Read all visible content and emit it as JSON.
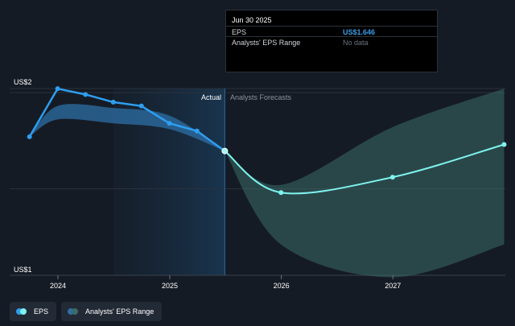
{
  "chart_data": {
    "type": "line",
    "y_axis_labels": {
      "top": "US$2",
      "bottom": "US$1"
    },
    "ylim": [
      1.0,
      2.0
    ],
    "x_ticks": [
      "2024",
      "2025",
      "2026",
      "2027"
    ],
    "section_labels": {
      "actual": "Actual",
      "forecast": "Analysts Forecasts"
    },
    "actual_divider_date": "2025-06-30",
    "series": [
      {
        "name": "EPS",
        "color": "#2e9ef0",
        "points": [
          {
            "x": "2023-09-30",
            "y": 1.72
          },
          {
            "x": "2023-12-31",
            "y": 1.97
          },
          {
            "x": "2024-03-31",
            "y": 1.94
          },
          {
            "x": "2024-06-30",
            "y": 1.9
          },
          {
            "x": "2024-09-30",
            "y": 1.88
          },
          {
            "x": "2024-12-31",
            "y": 1.79
          },
          {
            "x": "2025-03-31",
            "y": 1.75
          },
          {
            "x": "2025-06-30",
            "y": 1.646
          }
        ]
      },
      {
        "name": "Analysts' EPS Range (historical)",
        "color": "#2e6fa6",
        "upper": [
          {
            "x": "2023-09-30",
            "y": 1.72
          },
          {
            "x": "2023-12-31",
            "y": 1.88
          },
          {
            "x": "2024-06-30",
            "y": 1.87
          },
          {
            "x": "2024-12-31",
            "y": 1.83
          },
          {
            "x": "2025-06-30",
            "y": 1.646
          }
        ],
        "lower": [
          {
            "x": "2023-09-30",
            "y": 1.72
          },
          {
            "x": "2023-12-31",
            "y": 1.81
          },
          {
            "x": "2024-06-30",
            "y": 1.79
          },
          {
            "x": "2024-12-31",
            "y": 1.76
          },
          {
            "x": "2025-06-30",
            "y": 1.646
          }
        ]
      },
      {
        "name": "EPS Forecast",
        "color": "#7ff3ee",
        "points": [
          {
            "x": "2025-06-30",
            "y": 1.646
          },
          {
            "x": "2025-12-31",
            "y": 1.43
          },
          {
            "x": "2026-12-31",
            "y": 1.51
          },
          {
            "x": "2027-12-31",
            "y": 1.68
          }
        ]
      },
      {
        "name": "Analysts' EPS Range",
        "color": "#3b6b68",
        "upper": [
          {
            "x": "2025-06-30",
            "y": 1.646
          },
          {
            "x": "2025-12-31",
            "y": 1.47
          },
          {
            "x": "2026-12-31",
            "y": 1.77
          },
          {
            "x": "2027-12-31",
            "y": 1.97
          }
        ],
        "lower": [
          {
            "x": "2025-06-30",
            "y": 1.646
          },
          {
            "x": "2025-12-31",
            "y": 1.16
          },
          {
            "x": "2026-12-31",
            "y": 0.99
          },
          {
            "x": "2027-12-31",
            "y": 1.16
          }
        ]
      }
    ],
    "tooltip": {
      "date": "Jun 30 2025",
      "rows": [
        {
          "label": "EPS",
          "value": "US$1.646"
        },
        {
          "label": "Analysts' EPS Range",
          "value": "No data"
        }
      ]
    },
    "legend": [
      {
        "label": "EPS",
        "colors": [
          "#2e9ef0",
          "#7ff3ee"
        ]
      },
      {
        "label": "Analysts' EPS Range",
        "colors": [
          "#2e6fa6",
          "#3b6b68"
        ]
      }
    ],
    "grid": true
  }
}
